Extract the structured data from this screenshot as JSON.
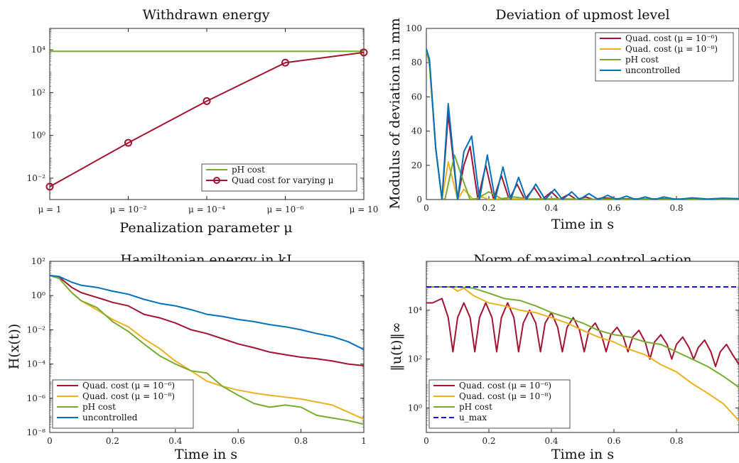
{
  "chart_data": [
    {
      "id": "c1",
      "type": "line",
      "title": "Withdrawn energy",
      "xlabel": "Penalization parameter μ",
      "ylabel": "",
      "y_scale": "log",
      "ylim_exp": [
        -3,
        5
      ],
      "categories": [
        "μ = 1",
        "μ = 10⁻²",
        "μ = 10⁻⁴",
        "μ = 10⁻⁶",
        "μ = 10"
      ],
      "y_ticks": [
        {
          "exp": -2,
          "label": "10⁻²"
        },
        {
          "exp": 0,
          "label": "10⁰"
        },
        {
          "exp": 2,
          "label": "10²"
        },
        {
          "exp": 4,
          "label": "10⁴"
        }
      ],
      "legend_position": "bottom-right",
      "series": [
        {
          "name": "pH cost",
          "color": "#77AC30",
          "marker": false,
          "values": [
            8500,
            8500,
            8500,
            8500,
            8500
          ]
        },
        {
          "name": "Quad cost for varying μ",
          "color": "#A2142F",
          "marker": true,
          "values": [
            0.004,
            0.45,
            40,
            2500,
            7500
          ]
        }
      ]
    },
    {
      "id": "c2",
      "type": "line",
      "title": "Deviation of upmost level",
      "xlabel": "Time in s",
      "ylabel": "Modulus of deviation in mm",
      "xlim": [
        0,
        1
      ],
      "ylim": [
        0,
        100
      ],
      "x_ticks": [
        "0",
        "0.2",
        "0.4",
        "0.6",
        "0.8"
      ],
      "y_ticks": [
        "0",
        "20",
        "40",
        "60",
        "80",
        "100"
      ],
      "legend_position": "top-right",
      "series": [
        {
          "name": "Quad. cost (μ = 10⁻⁶)",
          "color": "#A2142F",
          "x": [
            0,
            0.01,
            0.03,
            0.05,
            0.07,
            0.1,
            0.12,
            0.14,
            0.165,
            0.19,
            0.215,
            0.24,
            0.265,
            0.29,
            0.315,
            0.345,
            0.37,
            0.4,
            0.425,
            0.455,
            0.48,
            0.51,
            0.535,
            0.565,
            0.6,
            0.65,
            0.7,
            0.75,
            0.8,
            0.85,
            0.9,
            1.0
          ],
          "y": [
            88,
            80,
            30,
            0,
            50,
            0,
            20,
            31,
            0,
            20,
            0,
            14,
            0,
            9,
            0,
            7,
            0,
            4.5,
            0,
            3,
            0,
            1.5,
            0,
            1,
            0.5,
            0.4,
            0.3,
            0.4,
            0.3,
            0.3,
            0.2,
            0.2
          ]
        },
        {
          "name": "Quad. cost (μ = 10⁻⁸)",
          "color": "#EDB120",
          "x": [
            0,
            0.01,
            0.03,
            0.05,
            0.07,
            0.1,
            0.12,
            0.15,
            0.18,
            0.2,
            0.25,
            0.3,
            0.4,
            0.5,
            0.6,
            0.8,
            1.0
          ],
          "y": [
            88,
            78,
            30,
            0,
            22,
            0,
            6,
            0,
            1.5,
            0,
            0.6,
            0.3,
            0.2,
            0.1,
            0.1,
            0.05,
            0.05
          ]
        },
        {
          "name": "pH cost",
          "color": "#77AC30",
          "x": [
            0,
            0.01,
            0.03,
            0.05,
            0.06,
            0.09,
            0.12,
            0.14,
            0.16,
            0.2,
            0.24,
            0.28,
            0.33,
            0.4,
            0.5,
            0.6,
            0.7,
            0.8,
            1.0
          ],
          "y": [
            88,
            80,
            30,
            0,
            0.5,
            26,
            10,
            0,
            0.5,
            4.5,
            0.5,
            1.5,
            0.3,
            0.5,
            0.2,
            0.2,
            0.1,
            0.1,
            0.1
          ]
        },
        {
          "name": "uncontrolled",
          "color": "#0072BD",
          "x": [
            0,
            0.01,
            0.03,
            0.05,
            0.07,
            0.1,
            0.12,
            0.145,
            0.17,
            0.195,
            0.22,
            0.245,
            0.27,
            0.295,
            0.32,
            0.35,
            0.38,
            0.41,
            0.435,
            0.465,
            0.49,
            0.52,
            0.55,
            0.58,
            0.61,
            0.64,
            0.67,
            0.7,
            0.73,
            0.76,
            0.8,
            0.85,
            0.9,
            0.95,
            1.0
          ],
          "y": [
            88,
            82,
            30,
            0,
            56,
            0,
            28,
            37,
            0,
            26,
            0,
            19,
            0,
            13,
            0,
            9,
            0,
            6,
            0,
            4.5,
            0,
            3.5,
            0,
            2.5,
            0,
            2,
            0,
            1.5,
            0,
            1.5,
            0,
            1,
            0.3,
            0.8,
            0.5
          ]
        }
      ]
    },
    {
      "id": "c3",
      "type": "line",
      "title": "Hamiltonian energy in kJ",
      "xlabel": "Time in s",
      "ylabel": "H(x(t))",
      "y_scale": "log",
      "xlim": [
        0,
        1
      ],
      "ylim_exp": [
        -8,
        2
      ],
      "x_ticks": [
        "0",
        "0.2",
        "0.4",
        "0.6",
        "0.8",
        "1"
      ],
      "y_ticks": [
        {
          "exp": -8,
          "label": "10⁻⁸"
        },
        {
          "exp": -6,
          "label": "10⁻⁶"
        },
        {
          "exp": -4,
          "label": "10⁻⁴"
        },
        {
          "exp": -2,
          "label": "10⁻²"
        },
        {
          "exp": 0,
          "label": "10⁰"
        },
        {
          "exp": 2,
          "label": "10²"
        }
      ],
      "legend_position": "bottom-left",
      "series": [
        {
          "name": "Quad. cost (μ = 10⁻⁶)",
          "color": "#A2142F",
          "x": [
            0,
            0.03,
            0.07,
            0.1,
            0.13,
            0.17,
            0.2,
            0.25,
            0.3,
            0.35,
            0.4,
            0.45,
            0.5,
            0.55,
            0.6,
            0.65,
            0.7,
            0.75,
            0.8,
            0.85,
            0.9,
            0.95,
            1.0
          ],
          "y": [
            15,
            12,
            3,
            1.5,
            1,
            0.6,
            0.4,
            0.25,
            0.08,
            0.05,
            0.025,
            0.01,
            0.006,
            0.003,
            0.0015,
            0.0009,
            0.0005,
            0.00035,
            0.00025,
            0.0002,
            0.00015,
            0.0001,
            8e-05
          ]
        },
        {
          "name": "Quad. cost (μ = 10⁻⁸)",
          "color": "#EDB120",
          "x": [
            0,
            0.03,
            0.07,
            0.1,
            0.15,
            0.2,
            0.25,
            0.3,
            0.35,
            0.4,
            0.45,
            0.5,
            0.55,
            0.6,
            0.65,
            0.7,
            0.8,
            0.9,
            1.0
          ],
          "y": [
            15,
            10,
            1.5,
            0.5,
            0.15,
            0.04,
            0.015,
            0.003,
            0.0008,
            0.00015,
            4e-05,
            1e-05,
            5e-06,
            3e-06,
            2e-06,
            1.5e-06,
            9e-07,
            4e-07,
            6e-08
          ]
        },
        {
          "name": "pH cost",
          "color": "#77AC30",
          "x": [
            0,
            0.03,
            0.07,
            0.1,
            0.15,
            0.2,
            0.25,
            0.3,
            0.35,
            0.4,
            0.45,
            0.5,
            0.55,
            0.6,
            0.65,
            0.7,
            0.75,
            0.8,
            0.85,
            0.9,
            0.95,
            1.0
          ],
          "y": [
            15,
            10,
            1.5,
            0.5,
            0.2,
            0.03,
            0.008,
            0.0015,
            0.0003,
            0.0001,
            4e-05,
            3e-05,
            5e-06,
            1.5e-06,
            5e-07,
            3e-07,
            4e-07,
            3e-07,
            1e-07,
            7e-08,
            5e-08,
            3e-08
          ]
        },
        {
          "name": "uncontrolled",
          "color": "#0072BD",
          "x": [
            0,
            0.03,
            0.07,
            0.1,
            0.15,
            0.2,
            0.25,
            0.3,
            0.35,
            0.4,
            0.45,
            0.5,
            0.55,
            0.6,
            0.65,
            0.7,
            0.75,
            0.8,
            0.85,
            0.9,
            0.95,
            1.0
          ],
          "y": [
            15,
            13,
            6,
            4,
            3,
            1.8,
            1.2,
            0.6,
            0.35,
            0.25,
            0.15,
            0.08,
            0.06,
            0.04,
            0.03,
            0.02,
            0.015,
            0.01,
            0.006,
            0.004,
            0.002,
            0.0007
          ]
        }
      ]
    },
    {
      "id": "c4",
      "type": "line",
      "title": "Norm of maximal control action",
      "xlabel": "Time in s",
      "ylabel": "‖u(t)‖∞",
      "y_scale": "log",
      "xlim": [
        0,
        1
      ],
      "ylim_exp": [
        -1,
        6
      ],
      "x_ticks": [
        "0",
        "0.2",
        "0.4",
        "0.6",
        "0.8"
      ],
      "y_ticks": [
        {
          "exp": 0,
          "label": "10⁰"
        },
        {
          "exp": 2,
          "label": "10²"
        },
        {
          "exp": 4,
          "label": "10⁴"
        }
      ],
      "legend_position": "bottom-left",
      "series": [
        {
          "name": "Quad. cost (μ = 10⁻⁶)",
          "color": "#A2142F",
          "x": [
            0,
            0.02,
            0.05,
            0.07,
            0.085,
            0.1,
            0.12,
            0.14,
            0.155,
            0.17,
            0.19,
            0.21,
            0.225,
            0.24,
            0.26,
            0.28,
            0.295,
            0.31,
            0.33,
            0.35,
            0.365,
            0.38,
            0.4,
            0.42,
            0.435,
            0.45,
            0.47,
            0.49,
            0.505,
            0.52,
            0.54,
            0.56,
            0.575,
            0.59,
            0.61,
            0.63,
            0.645,
            0.66,
            0.68,
            0.7,
            0.715,
            0.73,
            0.75,
            0.77,
            0.785,
            0.8,
            0.82,
            0.84,
            0.855,
            0.87,
            0.89,
            0.91,
            0.925,
            0.94,
            0.96,
            0.98,
            1.0
          ],
          "y": [
            20000,
            20000,
            30000,
            5000,
            200,
            5000,
            20000,
            5000,
            200,
            5000,
            20000,
            5000,
            200,
            5000,
            20000,
            5000,
            200,
            3000,
            10000,
            3000,
            200,
            3000,
            8000,
            2000,
            200,
            2000,
            5000,
            1500,
            200,
            1500,
            3000,
            1000,
            200,
            1000,
            2000,
            800,
            200,
            800,
            1500,
            500,
            100,
            500,
            1000,
            400,
            100,
            400,
            800,
            300,
            100,
            300,
            600,
            200,
            50,
            200,
            400,
            150,
            60
          ]
        },
        {
          "name": "Quad. cost (μ = 10⁻⁸)",
          "color": "#EDB120",
          "x": [
            0,
            0.02,
            0.05,
            0.08,
            0.1,
            0.12,
            0.15,
            0.2,
            0.25,
            0.3,
            0.35,
            0.4,
            0.45,
            0.5,
            0.55,
            0.6,
            0.65,
            0.7,
            0.75,
            0.8,
            0.85,
            0.9,
            0.95,
            1.0
          ],
          "y": [
            80000,
            90000,
            90000,
            90000,
            60000,
            80000,
            40000,
            20000,
            15000,
            10000,
            8000,
            5000,
            3000,
            1500,
            800,
            500,
            250,
            150,
            60,
            30,
            10,
            4,
            1.5,
            0.3
          ]
        },
        {
          "name": "pH cost",
          "color": "#77AC30",
          "x": [
            0,
            0.05,
            0.1,
            0.15,
            0.2,
            0.25,
            0.3,
            0.35,
            0.4,
            0.45,
            0.5,
            0.55,
            0.6,
            0.65,
            0.7,
            0.75,
            0.8,
            0.85,
            0.9,
            0.95,
            1.0
          ],
          "y": [
            90000,
            90000,
            90000,
            80000,
            50000,
            30000,
            25000,
            15000,
            8000,
            5000,
            3000,
            1500,
            1000,
            800,
            500,
            400,
            200,
            100,
            50,
            20,
            7
          ]
        },
        {
          "name": "u_max",
          "color": "#1515E8",
          "dashed": true,
          "x": [
            0,
            1
          ],
          "y": [
            90000,
            90000
          ]
        }
      ]
    }
  ],
  "legend_text": {
    "c1": [
      "pH cost",
      "Quad cost for varying μ"
    ],
    "c2": [
      "Quad. cost (μ = 10⁻⁶)",
      "Quad. cost (μ = 10⁻⁸)",
      "pH cost",
      "uncontrolled"
    ],
    "c3": [
      "Quad. cost (μ = 10⁻⁶)",
      "Quad. cost (μ = 10⁻⁸)",
      "pH cost",
      "uncontrolled"
    ],
    "c4": [
      "Quad. cost (μ = 10⁻⁶)",
      "Quad. cost (μ = 10⁻⁸)",
      "pH cost",
      "u_max"
    ]
  }
}
